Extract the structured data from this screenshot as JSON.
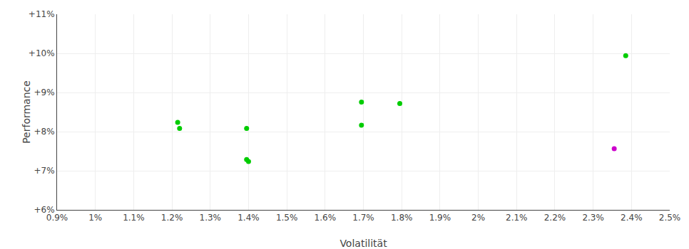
{
  "chart_data": {
    "type": "scatter",
    "xlabel": "Volatilität",
    "ylabel": "Performance",
    "xlim": [
      0.009,
      0.025
    ],
    "ylim": [
      0.06,
      0.11
    ],
    "xticks": [
      {
        "value": 0.009,
        "label": "0.9%"
      },
      {
        "value": 0.01,
        "label": "1%"
      },
      {
        "value": 0.011,
        "label": "1.1%"
      },
      {
        "value": 0.012,
        "label": "1.2%"
      },
      {
        "value": 0.013,
        "label": "1.3%"
      },
      {
        "value": 0.014,
        "label": "1.4%"
      },
      {
        "value": 0.015,
        "label": "1.5%"
      },
      {
        "value": 0.016,
        "label": "1.6%"
      },
      {
        "value": 0.017,
        "label": "1.7%"
      },
      {
        "value": 0.018,
        "label": "1.8%"
      },
      {
        "value": 0.019,
        "label": "1.9%"
      },
      {
        "value": 0.02,
        "label": "2%"
      },
      {
        "value": 0.021,
        "label": "2.1%"
      },
      {
        "value": 0.022,
        "label": "2.2%"
      },
      {
        "value": 0.023,
        "label": "2.3%"
      },
      {
        "value": 0.024,
        "label": "2.4%"
      },
      {
        "value": 0.025,
        "label": "2.5%"
      }
    ],
    "yticks": [
      {
        "value": 0.06,
        "label": "+6%"
      },
      {
        "value": 0.07,
        "label": "+7%"
      },
      {
        "value": 0.08,
        "label": "+8%"
      },
      {
        "value": 0.09,
        "label": "+9%"
      },
      {
        "value": 0.1,
        "label": "+10%"
      },
      {
        "value": 0.11,
        "label": "+11%"
      }
    ],
    "grid": true,
    "series": [
      {
        "color": "#00cc00",
        "x": [
          0.01215,
          0.0122,
          0.01395,
          0.01395,
          0.014,
          0.01695,
          0.01695,
          0.01795,
          0.02385
        ],
        "values": [
          0.08235,
          0.0808,
          0.0808,
          0.07285,
          0.07235,
          0.08165,
          0.08755,
          0.0872,
          0.0994
        ]
      },
      {
        "color": "#cc00cc",
        "x": [
          0.02355
        ],
        "values": [
          0.07565
        ]
      }
    ]
  }
}
